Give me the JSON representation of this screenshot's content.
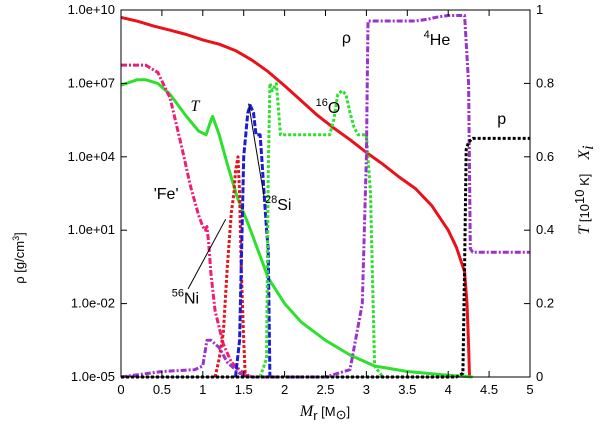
{
  "chart_data": {
    "type": "line",
    "xlabel": {
      "main": "M",
      "sub": "r",
      "unit_open": " [M",
      "unit_sym": "⊙",
      "unit_close": "]"
    },
    "ylabel_left": {
      "main": "ρ [g/cm",
      "sup": "3",
      "close": "]"
    },
    "ylabel_right": {
      "temp_main": "T",
      "temp_unit_open": " [10",
      "temp_unit_sup": "10",
      "temp_unit_close": " K]",
      "abund_main": "X",
      "abund_sub": "i"
    },
    "xlim": [
      0,
      5
    ],
    "ylim_left": [
      1e-05,
      10000000000.0
    ],
    "ylim_right": [
      0,
      1
    ],
    "yscale_left": "log",
    "x_ticks": [
      "0",
      "0.5",
      "1",
      "1.5",
      "2",
      "2.5",
      "3",
      "3.5",
      "4",
      "4.5",
      "5"
    ],
    "y_ticks_left": [
      {
        "value": 10000000000.0,
        "label": "1.0e+10"
      },
      {
        "value": 10000000.0,
        "label": "1.0e+07"
      },
      {
        "value": 10000.0,
        "label": "1.0e+04"
      },
      {
        "value": 10.0,
        "label": "1.0e+01"
      },
      {
        "value": 0.01,
        "label": "1.0e-02"
      },
      {
        "value": 1e-05,
        "label": "1.0e-05"
      }
    ],
    "y_ticks_right": [
      {
        "value": 0,
        "label": "0"
      },
      {
        "value": 0.2,
        "label": "0.2"
      },
      {
        "value": 0.4,
        "label": "0.4"
      },
      {
        "value": 0.6,
        "label": "0.6"
      },
      {
        "value": 0.8,
        "label": "0.8"
      },
      {
        "value": 1,
        "label": "1"
      }
    ],
    "annotations": [
      {
        "id": "rho",
        "text": "ρ",
        "x": 2.7,
        "y": 0.91
      },
      {
        "id": "T",
        "text": "T",
        "x": 0.85,
        "y": 0.725
      },
      {
        "id": "O16",
        "sup": "16",
        "text": "O",
        "x": 2.38,
        "y": 0.72
      },
      {
        "id": "He4",
        "sup": "4",
        "text": "He",
        "x": 3.7,
        "y": 0.905
      },
      {
        "id": "Si28",
        "sup": "28",
        "text": "Si",
        "x": 1.76,
        "y": 0.455
      },
      {
        "id": "Fe",
        "text": "'Fe'",
        "x": 0.4,
        "y": 0.485
      },
      {
        "id": "Ni56",
        "sup": "56",
        "text": "Ni",
        "x": 0.62,
        "y": 0.2
      },
      {
        "id": "p",
        "text": "p",
        "x": 4.6,
        "y": 0.69
      }
    ],
    "series": [
      {
        "id": "rho",
        "axis": "left",
        "color": "#e8121a",
        "dash": "solid",
        "points": [
          [
            0,
            5000000000.0
          ],
          [
            0.2,
            3500000000.0
          ],
          [
            0.4,
            2200000000.0
          ],
          [
            0.6,
            1500000000.0
          ],
          [
            0.8,
            1000000000.0
          ],
          [
            1.0,
            600000000.0
          ],
          [
            1.2,
            400000000.0
          ],
          [
            1.4,
            220000000.0
          ],
          [
            1.6,
            90000000.0
          ],
          [
            1.8,
            30000000.0
          ],
          [
            2.0,
            8000000.0
          ],
          [
            2.2,
            2000000.0
          ],
          [
            2.4,
            500000.0
          ],
          [
            2.6,
            150000.0
          ],
          [
            2.8,
            50000.0
          ],
          [
            3.0,
            15000.0
          ],
          [
            3.2,
            5000.0
          ],
          [
            3.4,
            1500.0
          ],
          [
            3.6,
            500
          ],
          [
            3.8,
            100
          ],
          [
            4.0,
            10
          ],
          [
            4.1,
            2
          ],
          [
            4.2,
            0.2
          ],
          [
            4.23,
            0.01
          ],
          [
            4.25,
            0.0002
          ],
          [
            4.26,
            1e-05
          ]
        ]
      },
      {
        "id": "T",
        "axis": "right",
        "color": "#2ee02e",
        "dash": "solid",
        "points": [
          [
            0,
            0.795
          ],
          [
            0.2,
            0.81
          ],
          [
            0.3,
            0.81
          ],
          [
            0.45,
            0.8
          ],
          [
            0.6,
            0.77
          ],
          [
            0.8,
            0.71
          ],
          [
            0.95,
            0.67
          ],
          [
            1.04,
            0.66
          ],
          [
            1.1,
            0.7
          ],
          [
            1.12,
            0.71
          ],
          [
            1.2,
            0.66
          ],
          [
            1.3,
            0.58
          ],
          [
            1.42,
            0.49
          ],
          [
            1.55,
            0.42
          ],
          [
            1.7,
            0.33
          ],
          [
            1.8,
            0.27
          ],
          [
            2.0,
            0.2
          ],
          [
            2.2,
            0.15
          ],
          [
            2.5,
            0.1
          ],
          [
            2.8,
            0.06
          ],
          [
            3.1,
            0.03
          ],
          [
            3.5,
            0.015
          ],
          [
            4.0,
            0.005
          ],
          [
            4.3,
            0
          ]
        ]
      },
      {
        "id": "Fe",
        "axis": "right",
        "color": "#ee1e78",
        "dash": "dash-dot",
        "points": [
          [
            0,
            0.85
          ],
          [
            0.3,
            0.85
          ],
          [
            0.45,
            0.83
          ],
          [
            0.6,
            0.76
          ],
          [
            0.75,
            0.62
          ],
          [
            0.85,
            0.52
          ],
          [
            0.95,
            0.44
          ],
          [
            1.0,
            0.41
          ],
          [
            1.03,
            0.4
          ],
          [
            1.05,
            0.41
          ],
          [
            1.07,
            0.37
          ],
          [
            1.1,
            0.28
          ],
          [
            1.15,
            0.18
          ],
          [
            1.25,
            0.09
          ],
          [
            1.35,
            0.04
          ],
          [
            1.5,
            0.01
          ],
          [
            1.6,
            0
          ]
        ]
      },
      {
        "id": "Ni56",
        "axis": "right",
        "color": "#e8121a",
        "dash": "dot",
        "points": [
          [
            1.15,
            0
          ],
          [
            1.2,
            0.05
          ],
          [
            1.25,
            0.12
          ],
          [
            1.3,
            0.3
          ],
          [
            1.35,
            0.45
          ],
          [
            1.38,
            0.5
          ],
          [
            1.4,
            0.56
          ],
          [
            1.43,
            0.6
          ],
          [
            1.45,
            0.5
          ],
          [
            1.47,
            0.3
          ],
          [
            1.5,
            0.1
          ],
          [
            1.52,
            0
          ]
        ]
      },
      {
        "id": "Si28",
        "axis": "right",
        "color": "#1c1cd6",
        "dash": "dash",
        "points": [
          [
            1.4,
            0
          ],
          [
            1.45,
            0.1
          ],
          [
            1.5,
            0.6
          ],
          [
            1.55,
            0.72
          ],
          [
            1.58,
            0.74
          ],
          [
            1.62,
            0.72
          ],
          [
            1.65,
            0.66
          ],
          [
            1.7,
            0.66
          ],
          [
            1.72,
            0.6
          ],
          [
            1.75,
            0.5
          ],
          [
            1.78,
            0.4
          ],
          [
            1.8,
            0.35
          ],
          [
            1.82,
            0
          ]
        ]
      },
      {
        "id": "O16",
        "axis": "right",
        "color": "#2ee02e",
        "dash": "dot",
        "points": [
          [
            1.7,
            0
          ],
          [
            1.78,
            0.05
          ],
          [
            1.8,
            0.55
          ],
          [
            1.82,
            0.8
          ],
          [
            1.85,
            0.78
          ],
          [
            1.9,
            0.8
          ],
          [
            1.95,
            0.66
          ],
          [
            2.4,
            0.66
          ],
          [
            2.55,
            0.66
          ],
          [
            2.6,
            0.7
          ],
          [
            2.65,
            0.77
          ],
          [
            2.7,
            0.78
          ],
          [
            2.75,
            0.77
          ],
          [
            2.8,
            0.72
          ],
          [
            2.85,
            0.68
          ],
          [
            2.9,
            0.66
          ],
          [
            3.0,
            0.66
          ],
          [
            3.05,
            0.5
          ],
          [
            3.1,
            0.03
          ],
          [
            3.2,
            0
          ]
        ]
      },
      {
        "id": "He4",
        "axis": "right",
        "color": "#9933cc",
        "dash": "dash-dot",
        "points": [
          [
            0,
            0
          ],
          [
            0.5,
            0.015
          ],
          [
            0.9,
            0.02
          ],
          [
            1.0,
            0.03
          ],
          [
            1.05,
            0.1
          ],
          [
            1.1,
            0.1
          ],
          [
            1.2,
            0.08
          ],
          [
            1.3,
            0.04
          ],
          [
            1.45,
            0.01
          ],
          [
            1.6,
            0
          ],
          [
            2.5,
            0
          ],
          [
            2.8,
            0.02
          ],
          [
            2.95,
            0.2
          ],
          [
            3.0,
            0.6
          ],
          [
            3.02,
            0.97
          ],
          [
            3.4,
            0.97
          ],
          [
            3.6,
            0.97
          ],
          [
            3.75,
            0.975
          ],
          [
            3.85,
            0.98
          ],
          [
            4.0,
            0.985
          ],
          [
            4.2,
            0.985
          ],
          [
            4.25,
            0.8
          ],
          [
            4.27,
            0.35
          ],
          [
            4.3,
            0.34
          ],
          [
            5.0,
            0.34
          ]
        ]
      },
      {
        "id": "p",
        "axis": "right",
        "color": "#000000",
        "dash": "dot",
        "points": [
          [
            0,
            0
          ],
          [
            4.1,
            0
          ],
          [
            4.18,
            0.01
          ],
          [
            4.2,
            0.3
          ],
          [
            4.22,
            0.62
          ],
          [
            4.25,
            0.64
          ],
          [
            4.3,
            0.65
          ],
          [
            5.0,
            0.65
          ]
        ]
      }
    ]
  }
}
